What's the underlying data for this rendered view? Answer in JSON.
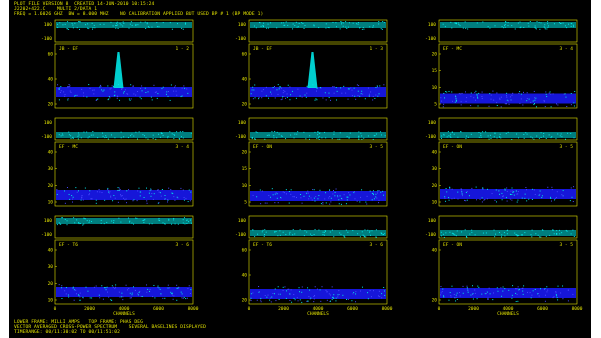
{
  "header": {
    "line1": "PLOT FILE VERSION 8  CREATED 14-JUN-2010 10:15:24",
    "line2": "J2202+422.C    MULTI 2/DATA 1",
    "line3": "FREQ = 1.6026 GHZ  BW = 8.000 MHZ    NO CALIBRATION APPLIED BUT USED BP # 1 (BP MODE 1)"
  },
  "footer": {
    "line1": "LOWER FRAME: MILLI AMPS   TOP FRAME: PHAS DEG",
    "line2": "VECTOR AVERAGED CROSS-POWER SPECTRUM    SEVERAL BASELINES DISPLAYED",
    "line3": "TIMERANGE: 00/11:30:02 TO 00/11:51:02"
  },
  "colors": {
    "background": "#000000",
    "frame": "#e6e600",
    "phase": "#00e6e6",
    "amplitude_ticks": "#2a2aff",
    "text": "#e6e600"
  },
  "axes": {
    "x_ticks": [
      "0",
      "2000",
      "4000",
      "6000",
      "8000"
    ],
    "x_label": "CHANNELS",
    "phase_ticks": [
      "100",
      "-100"
    ]
  },
  "panels": [
    {
      "baseline": "JB - EF",
      "index": "1 - 2",
      "amp_ticks": [
        "60",
        "40",
        "20"
      ],
      "phase_value": 100,
      "amp_base": 18,
      "spike": 58
    },
    {
      "baseline": "JB - EF",
      "index": "1 - 3",
      "amp_ticks": [
        "60",
        "40",
        "20"
      ],
      "phase_value": 100,
      "amp_base": 18,
      "spike": 58
    },
    {
      "baseline": "EF - MC",
      "index": "3 - 4",
      "amp_ticks": [
        "20",
        "15",
        "10",
        "5"
      ],
      "phase_value": 100,
      "amp_base": 5,
      "spike": 0
    },
    {
      "baseline": "EF - MC",
      "index": "3 - 4",
      "amp_ticks": [
        "40",
        "30",
        "20",
        "10"
      ],
      "phase_value": -100,
      "amp_base": 8,
      "spike": 0
    },
    {
      "baseline": "EF - ON",
      "index": "3 - 5",
      "amp_ticks": [
        "20",
        "15",
        "10",
        "5"
      ],
      "phase_value": -100,
      "amp_base": 6,
      "spike": 0
    },
    {
      "baseline": "EF - ON",
      "index": "3 - 5",
      "amp_ticks": [
        "40",
        "30",
        "20",
        "10"
      ],
      "phase_value": -100,
      "amp_base": 10,
      "spike": 0
    },
    {
      "baseline": "EF - T6",
      "index": "3 - 6",
      "amp_ticks": [
        "40",
        "30",
        "20",
        "10"
      ],
      "phase_value": 100,
      "amp_base": 10,
      "spike": 0
    },
    {
      "baseline": "EF - T6",
      "index": "3 - 6",
      "amp_ticks": [
        "60",
        "40",
        "20"
      ],
      "phase_value": -100,
      "amp_base": 6,
      "spike": 0
    },
    {
      "baseline": "EF - ON",
      "index": "3 - 5",
      "amp_ticks": [
        "40",
        "20"
      ],
      "phase_value": -100,
      "amp_base": 8,
      "spike": 0
    }
  ]
}
